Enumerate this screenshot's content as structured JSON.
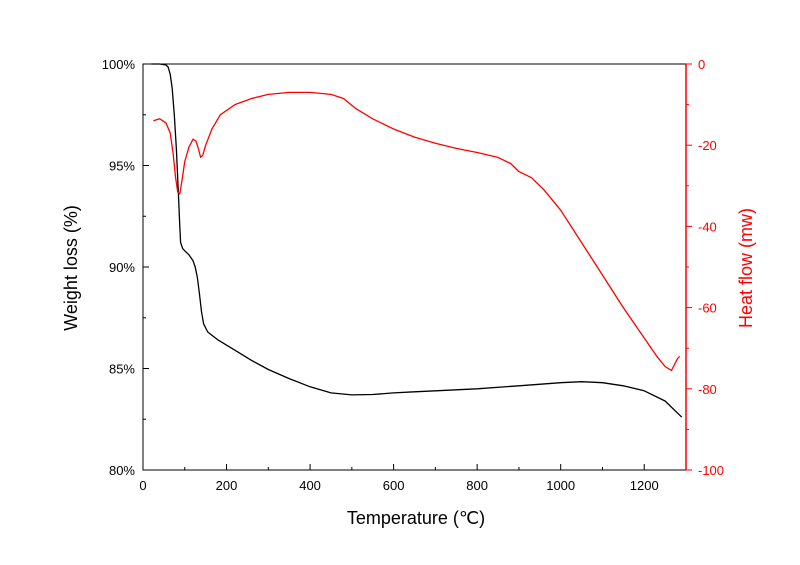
{
  "chart_data": {
    "type": "line",
    "xlabel": "Temperature (℃)",
    "ylabel_left": "Weight loss (%)",
    "ylabel_right": "Heat flow (mw)",
    "xlim": [
      0,
      1300
    ],
    "ylim_left": [
      80,
      100
    ],
    "ylim_right": [
      -100,
      0
    ],
    "x_ticks": [
      "0",
      "200",
      "400",
      "600",
      "800",
      "1000",
      "1200"
    ],
    "y_left_ticks": [
      "80%",
      "85%",
      "90%",
      "95%",
      "100%"
    ],
    "y_right_ticks": [
      "-100",
      "-80",
      "-60",
      "-40",
      "-20",
      "0"
    ],
    "grid": false,
    "colors": {
      "weight": "#000000",
      "heat": "#ff0000"
    },
    "series": [
      {
        "axis": "left",
        "color": "#000000",
        "points": [
          [
            20,
            100
          ],
          [
            40,
            100
          ],
          [
            55,
            99.95
          ],
          [
            60,
            99.85
          ],
          [
            65,
            99.5
          ],
          [
            70,
            98.8
          ],
          [
            75,
            97.5
          ],
          [
            80,
            95.8
          ],
          [
            85,
            93.5
          ],
          [
            88,
            92
          ],
          [
            90,
            91.2
          ],
          [
            95,
            90.9
          ],
          [
            100,
            90.8
          ],
          [
            110,
            90.6
          ],
          [
            120,
            90.3
          ],
          [
            125,
            90.0
          ],
          [
            130,
            89.5
          ],
          [
            135,
            88.7
          ],
          [
            140,
            87.8
          ],
          [
            145,
            87.2
          ],
          [
            155,
            86.8
          ],
          [
            180,
            86.4
          ],
          [
            220,
            85.9
          ],
          [
            260,
            85.4
          ],
          [
            300,
            84.95
          ],
          [
            350,
            84.5
          ],
          [
            400,
            84.1
          ],
          [
            450,
            83.8
          ],
          [
            500,
            83.7
          ],
          [
            550,
            83.72
          ],
          [
            600,
            83.8
          ],
          [
            650,
            83.85
          ],
          [
            700,
            83.9
          ],
          [
            800,
            84.0
          ],
          [
            900,
            84.15
          ],
          [
            1000,
            84.3
          ],
          [
            1050,
            84.35
          ],
          [
            1100,
            84.3
          ],
          [
            1150,
            84.15
          ],
          [
            1200,
            83.9
          ],
          [
            1250,
            83.4
          ],
          [
            1290,
            82.6
          ]
        ]
      },
      {
        "axis": "right",
        "color": "#ff0000",
        "points": [
          [
            25,
            -14
          ],
          [
            40,
            -13.5
          ],
          [
            55,
            -14.5
          ],
          [
            65,
            -17
          ],
          [
            72,
            -22
          ],
          [
            78,
            -28
          ],
          [
            83,
            -31.5
          ],
          [
            88,
            -32
          ],
          [
            93,
            -29
          ],
          [
            100,
            -24
          ],
          [
            110,
            -20.5
          ],
          [
            120,
            -18.5
          ],
          [
            127,
            -19
          ],
          [
            133,
            -21
          ],
          [
            138,
            -23
          ],
          [
            143,
            -22.5
          ],
          [
            150,
            -20
          ],
          [
            165,
            -16
          ],
          [
            185,
            -12.5
          ],
          [
            220,
            -10
          ],
          [
            260,
            -8.5
          ],
          [
            300,
            -7.5
          ],
          [
            350,
            -7
          ],
          [
            400,
            -7
          ],
          [
            450,
            -7.5
          ],
          [
            480,
            -8.5
          ],
          [
            510,
            -11
          ],
          [
            550,
            -13.5
          ],
          [
            600,
            -16
          ],
          [
            650,
            -18
          ],
          [
            700,
            -19.5
          ],
          [
            750,
            -20.8
          ],
          [
            800,
            -21.8
          ],
          [
            850,
            -23
          ],
          [
            880,
            -24.5
          ],
          [
            900,
            -26.5
          ],
          [
            930,
            -28
          ],
          [
            960,
            -31
          ],
          [
            1000,
            -36
          ],
          [
            1050,
            -44
          ],
          [
            1100,
            -52
          ],
          [
            1150,
            -60
          ],
          [
            1200,
            -67.5
          ],
          [
            1230,
            -72
          ],
          [
            1250,
            -74.5
          ],
          [
            1265,
            -75.5
          ],
          [
            1270,
            -74.5
          ],
          [
            1280,
            -72.5
          ],
          [
            1285,
            -72
          ]
        ]
      }
    ]
  }
}
